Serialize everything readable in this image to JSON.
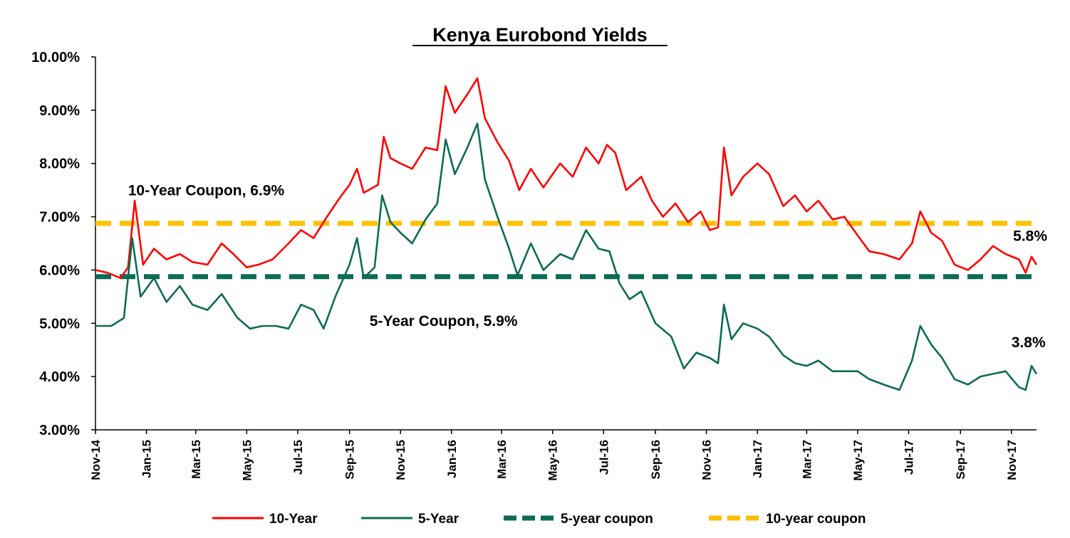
{
  "chart_data": {
    "type": "line",
    "title": "Kenya Eurobond Yields",
    "xlabel": "",
    "ylabel": "",
    "ylim": [
      3.0,
      10.0
    ],
    "y_ticks": [
      "3.00%",
      "4.00%",
      "5.00%",
      "6.00%",
      "7.00%",
      "8.00%",
      "9.00%",
      "10.00%"
    ],
    "x_range": [
      "2014-11-01",
      "2017-12-01"
    ],
    "x_ticks": [
      "Nov-14",
      "Jan-15",
      "Mar-15",
      "May-15",
      "Jul-15",
      "Sep-15",
      "Nov-15",
      "Jan-16",
      "Mar-16",
      "May-16",
      "Jul-16",
      "Sep-16",
      "Nov-16",
      "Jan-17",
      "Mar-17",
      "May-17",
      "Jul-17",
      "Sep-17",
      "Nov-17"
    ],
    "grid": false,
    "legend_position": "bottom",
    "annotations": [
      {
        "text": "10-Year Coupon, 6.9%",
        "date": "2014-12-10",
        "y": 7.4
      },
      {
        "text": "5-Year Coupon, 5.9%",
        "date": "2015-09-25",
        "y": 4.95
      },
      {
        "text": "5.8%",
        "date": "2017-11-03",
        "y": 6.55
      },
      {
        "text": "3.8%",
        "date": "2017-11-01",
        "y": 4.55
      }
    ],
    "series": [
      {
        "name": "10-Year",
        "color": "#ff0000",
        "dash": "solid",
        "points": [
          [
            "2014-11-01",
            6.0
          ],
          [
            "2014-11-15",
            5.95
          ],
          [
            "2014-12-01",
            5.85
          ],
          [
            "2014-12-10",
            6.05
          ],
          [
            "2014-12-18",
            7.3
          ],
          [
            "2014-12-28",
            6.1
          ],
          [
            "2015-01-10",
            6.4
          ],
          [
            "2015-01-25",
            6.2
          ],
          [
            "2015-02-10",
            6.3
          ],
          [
            "2015-02-25",
            6.15
          ],
          [
            "2015-03-15",
            6.1
          ],
          [
            "2015-04-01",
            6.5
          ],
          [
            "2015-04-15",
            6.3
          ],
          [
            "2015-05-01",
            6.05
          ],
          [
            "2015-05-15",
            6.1
          ],
          [
            "2015-06-01",
            6.2
          ],
          [
            "2015-06-20",
            6.5
          ],
          [
            "2015-07-05",
            6.75
          ],
          [
            "2015-07-20",
            6.6
          ],
          [
            "2015-08-05",
            7.0
          ],
          [
            "2015-08-20",
            7.35
          ],
          [
            "2015-09-01",
            7.6
          ],
          [
            "2015-09-10",
            7.9
          ],
          [
            "2015-09-18",
            7.45
          ],
          [
            "2015-10-05",
            7.6
          ],
          [
            "2015-10-12",
            8.5
          ],
          [
            "2015-10-20",
            8.1
          ],
          [
            "2015-11-01",
            8.0
          ],
          [
            "2015-11-15",
            7.9
          ],
          [
            "2015-12-01",
            8.3
          ],
          [
            "2015-12-15",
            8.25
          ],
          [
            "2015-12-25",
            9.45
          ],
          [
            "2016-01-05",
            8.95
          ],
          [
            "2016-01-20",
            9.3
          ],
          [
            "2016-02-01",
            9.6
          ],
          [
            "2016-02-10",
            8.85
          ],
          [
            "2016-02-25",
            8.4
          ],
          [
            "2016-03-10",
            8.05
          ],
          [
            "2016-03-22",
            7.5
          ],
          [
            "2016-04-05",
            7.9
          ],
          [
            "2016-04-20",
            7.55
          ],
          [
            "2016-05-10",
            8.0
          ],
          [
            "2016-05-25",
            7.75
          ],
          [
            "2016-06-10",
            8.3
          ],
          [
            "2016-06-25",
            8.0
          ],
          [
            "2016-07-05",
            8.35
          ],
          [
            "2016-07-15",
            8.2
          ],
          [
            "2016-07-28",
            7.5
          ],
          [
            "2016-08-15",
            7.75
          ],
          [
            "2016-08-28",
            7.3
          ],
          [
            "2016-09-10",
            7.0
          ],
          [
            "2016-09-25",
            7.25
          ],
          [
            "2016-10-10",
            6.9
          ],
          [
            "2016-10-25",
            7.1
          ],
          [
            "2016-11-05",
            6.75
          ],
          [
            "2016-11-15",
            6.8
          ],
          [
            "2016-11-22",
            8.3
          ],
          [
            "2016-12-01",
            7.4
          ],
          [
            "2016-12-15",
            7.75
          ],
          [
            "2017-01-01",
            8.0
          ],
          [
            "2017-01-15",
            7.8
          ],
          [
            "2017-02-01",
            7.2
          ],
          [
            "2017-02-15",
            7.4
          ],
          [
            "2017-03-01",
            7.1
          ],
          [
            "2017-03-15",
            7.3
          ],
          [
            "2017-04-01",
            6.95
          ],
          [
            "2017-04-15",
            7.0
          ],
          [
            "2017-05-01",
            6.65
          ],
          [
            "2017-05-15",
            6.35
          ],
          [
            "2017-06-01",
            6.3
          ],
          [
            "2017-06-20",
            6.2
          ],
          [
            "2017-07-05",
            6.5
          ],
          [
            "2017-07-15",
            7.1
          ],
          [
            "2017-07-28",
            6.7
          ],
          [
            "2017-08-10",
            6.55
          ],
          [
            "2017-08-25",
            6.1
          ],
          [
            "2017-09-10",
            6.0
          ],
          [
            "2017-09-25",
            6.2
          ],
          [
            "2017-10-10",
            6.45
          ],
          [
            "2017-10-25",
            6.3
          ],
          [
            "2017-11-10",
            6.2
          ],
          [
            "2017-11-18",
            5.95
          ],
          [
            "2017-11-25",
            6.25
          ],
          [
            "2017-12-01",
            6.1
          ]
        ]
      },
      {
        "name": "5-Year",
        "color": "#0d6b55",
        "dash": "solid",
        "points": [
          [
            "2014-11-01",
            4.95
          ],
          [
            "2014-11-20",
            4.95
          ],
          [
            "2014-12-05",
            5.1
          ],
          [
            "2014-12-15",
            6.6
          ],
          [
            "2014-12-25",
            5.5
          ],
          [
            "2015-01-10",
            5.85
          ],
          [
            "2015-01-25",
            5.4
          ],
          [
            "2015-02-10",
            5.7
          ],
          [
            "2015-02-25",
            5.35
          ],
          [
            "2015-03-15",
            5.25
          ],
          [
            "2015-04-01",
            5.55
          ],
          [
            "2015-04-20",
            5.1
          ],
          [
            "2015-05-05",
            4.9
          ],
          [
            "2015-05-20",
            4.95
          ],
          [
            "2015-06-05",
            4.95
          ],
          [
            "2015-06-20",
            4.9
          ],
          [
            "2015-07-05",
            5.35
          ],
          [
            "2015-07-20",
            5.25
          ],
          [
            "2015-08-01",
            4.9
          ],
          [
            "2015-08-15",
            5.5
          ],
          [
            "2015-09-01",
            6.1
          ],
          [
            "2015-09-10",
            6.6
          ],
          [
            "2015-09-18",
            5.85
          ],
          [
            "2015-10-01",
            6.05
          ],
          [
            "2015-10-10",
            7.4
          ],
          [
            "2015-10-20",
            6.9
          ],
          [
            "2015-11-01",
            6.7
          ],
          [
            "2015-11-15",
            6.5
          ],
          [
            "2015-12-01",
            6.95
          ],
          [
            "2015-12-15",
            7.25
          ],
          [
            "2015-12-25",
            8.45
          ],
          [
            "2016-01-05",
            7.8
          ],
          [
            "2016-01-20",
            8.3
          ],
          [
            "2016-02-01",
            8.75
          ],
          [
            "2016-02-10",
            7.7
          ],
          [
            "2016-02-25",
            7.0
          ],
          [
            "2016-03-10",
            6.4
          ],
          [
            "2016-03-20",
            5.9
          ],
          [
            "2016-04-05",
            6.5
          ],
          [
            "2016-04-20",
            6.0
          ],
          [
            "2016-05-10",
            6.3
          ],
          [
            "2016-05-25",
            6.2
          ],
          [
            "2016-06-10",
            6.75
          ],
          [
            "2016-06-25",
            6.4
          ],
          [
            "2016-07-08",
            6.35
          ],
          [
            "2016-07-20",
            5.75
          ],
          [
            "2016-08-01",
            5.45
          ],
          [
            "2016-08-15",
            5.6
          ],
          [
            "2016-09-01",
            5.0
          ],
          [
            "2016-09-20",
            4.75
          ],
          [
            "2016-10-05",
            4.15
          ],
          [
            "2016-10-20",
            4.45
          ],
          [
            "2016-11-05",
            4.35
          ],
          [
            "2016-11-15",
            4.25
          ],
          [
            "2016-11-22",
            5.35
          ],
          [
            "2016-12-01",
            4.7
          ],
          [
            "2016-12-15",
            5.0
          ],
          [
            "2017-01-01",
            4.9
          ],
          [
            "2017-01-15",
            4.75
          ],
          [
            "2017-02-01",
            4.4
          ],
          [
            "2017-02-15",
            4.25
          ],
          [
            "2017-03-01",
            4.2
          ],
          [
            "2017-03-15",
            4.3
          ],
          [
            "2017-04-01",
            4.1
          ],
          [
            "2017-04-15",
            4.1
          ],
          [
            "2017-05-01",
            4.1
          ],
          [
            "2017-05-15",
            3.95
          ],
          [
            "2017-06-01",
            3.85
          ],
          [
            "2017-06-20",
            3.75
          ],
          [
            "2017-07-05",
            4.3
          ],
          [
            "2017-07-15",
            4.95
          ],
          [
            "2017-07-28",
            4.6
          ],
          [
            "2017-08-10",
            4.35
          ],
          [
            "2017-08-25",
            3.95
          ],
          [
            "2017-09-10",
            3.85
          ],
          [
            "2017-09-25",
            4.0
          ],
          [
            "2017-10-10",
            4.05
          ],
          [
            "2017-10-25",
            4.1
          ],
          [
            "2017-11-10",
            3.8
          ],
          [
            "2017-11-18",
            3.75
          ],
          [
            "2017-11-25",
            4.2
          ],
          [
            "2017-12-01",
            4.05
          ]
        ]
      },
      {
        "name": "5-year coupon",
        "color": "#0d6b55",
        "dash": "dashed",
        "points": [
          [
            "2014-11-01",
            5.875
          ],
          [
            "2017-12-01",
            5.875
          ]
        ]
      },
      {
        "name": "10-year coupon",
        "color": "#ffc000",
        "dash": "dashed",
        "points": [
          [
            "2014-11-01",
            6.875
          ],
          [
            "2017-12-01",
            6.875
          ]
        ]
      }
    ]
  }
}
